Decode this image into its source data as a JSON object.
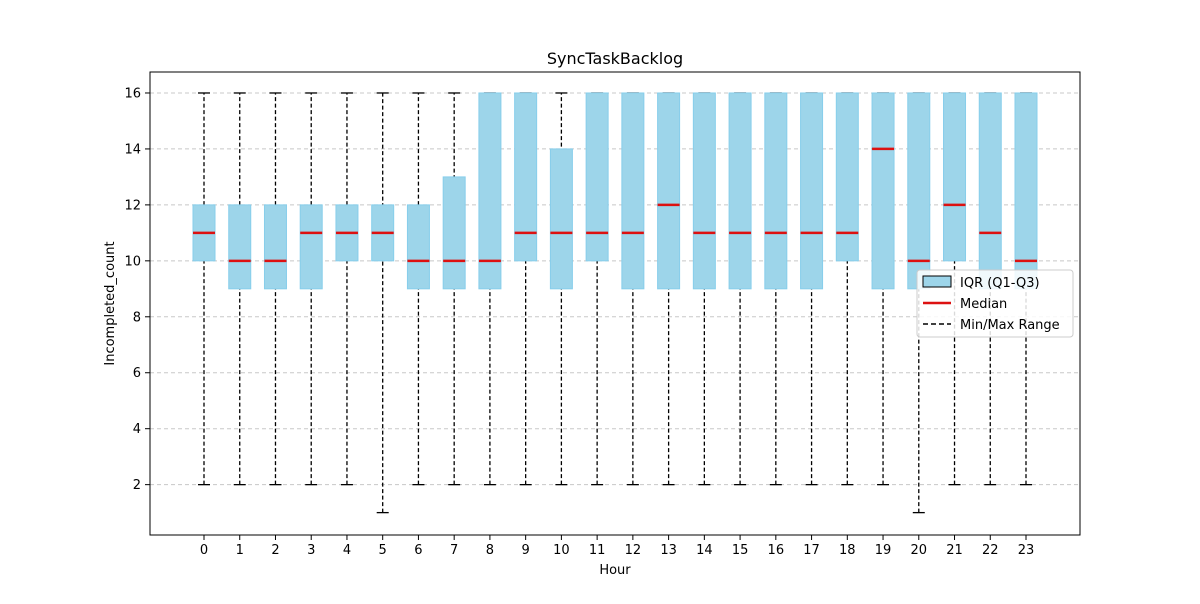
{
  "chart_data": {
    "type": "box",
    "title": "SyncTaskBacklog",
    "xlabel": "Hour",
    "ylabel": "Incompleted_count",
    "ylim": [
      0.2,
      16.75
    ],
    "y_ticks": [
      2,
      4,
      6,
      8,
      10,
      12,
      14,
      16
    ],
    "grid": "horizontal dashed",
    "legend_position": "center-right",
    "colors": {
      "box_fill": "#9dd5ea",
      "box_edge": "#87ceeb",
      "median": "#dd1111",
      "whisker": "#000000",
      "grid": "#c8c8c8"
    },
    "legend": [
      {
        "label": "IQR (Q1-Q3)",
        "kind": "box"
      },
      {
        "label": "Median",
        "kind": "median"
      },
      {
        "label": "Min/Max Range",
        "kind": "whisker"
      }
    ],
    "categories": [
      "0",
      "1",
      "2",
      "3",
      "4",
      "5",
      "6",
      "7",
      "8",
      "9",
      "10",
      "11",
      "12",
      "13",
      "14",
      "15",
      "16",
      "17",
      "18",
      "19",
      "20",
      "21",
      "22",
      "23"
    ],
    "min": [
      2,
      2,
      2,
      2,
      2,
      1,
      2,
      2,
      2,
      2,
      2,
      2,
      2,
      2,
      2,
      2,
      2,
      2,
      2,
      2,
      1,
      2,
      2,
      2
    ],
    "q1": [
      10,
      9,
      9,
      9,
      10,
      10,
      9,
      9,
      9,
      10,
      9,
      10,
      9,
      9,
      9,
      9,
      9,
      9,
      10,
      9,
      9,
      10,
      9,
      9
    ],
    "median": [
      11,
      10,
      10,
      11,
      11,
      11,
      10,
      10,
      10,
      11,
      11,
      11,
      11,
      12,
      11,
      11,
      11,
      11,
      11,
      14,
      10,
      12,
      11,
      10
    ],
    "q3": [
      12,
      12,
      12,
      12,
      12,
      12,
      12,
      13,
      16,
      16,
      14,
      16,
      16,
      16,
      16,
      16,
      16,
      16,
      16,
      16,
      16,
      16,
      16,
      16
    ],
    "max": [
      16,
      16,
      16,
      16,
      16,
      16,
      16,
      16,
      16,
      16,
      16,
      16,
      16,
      16,
      16,
      16,
      16,
      16,
      16,
      16,
      16,
      16,
      16,
      16
    ]
  }
}
